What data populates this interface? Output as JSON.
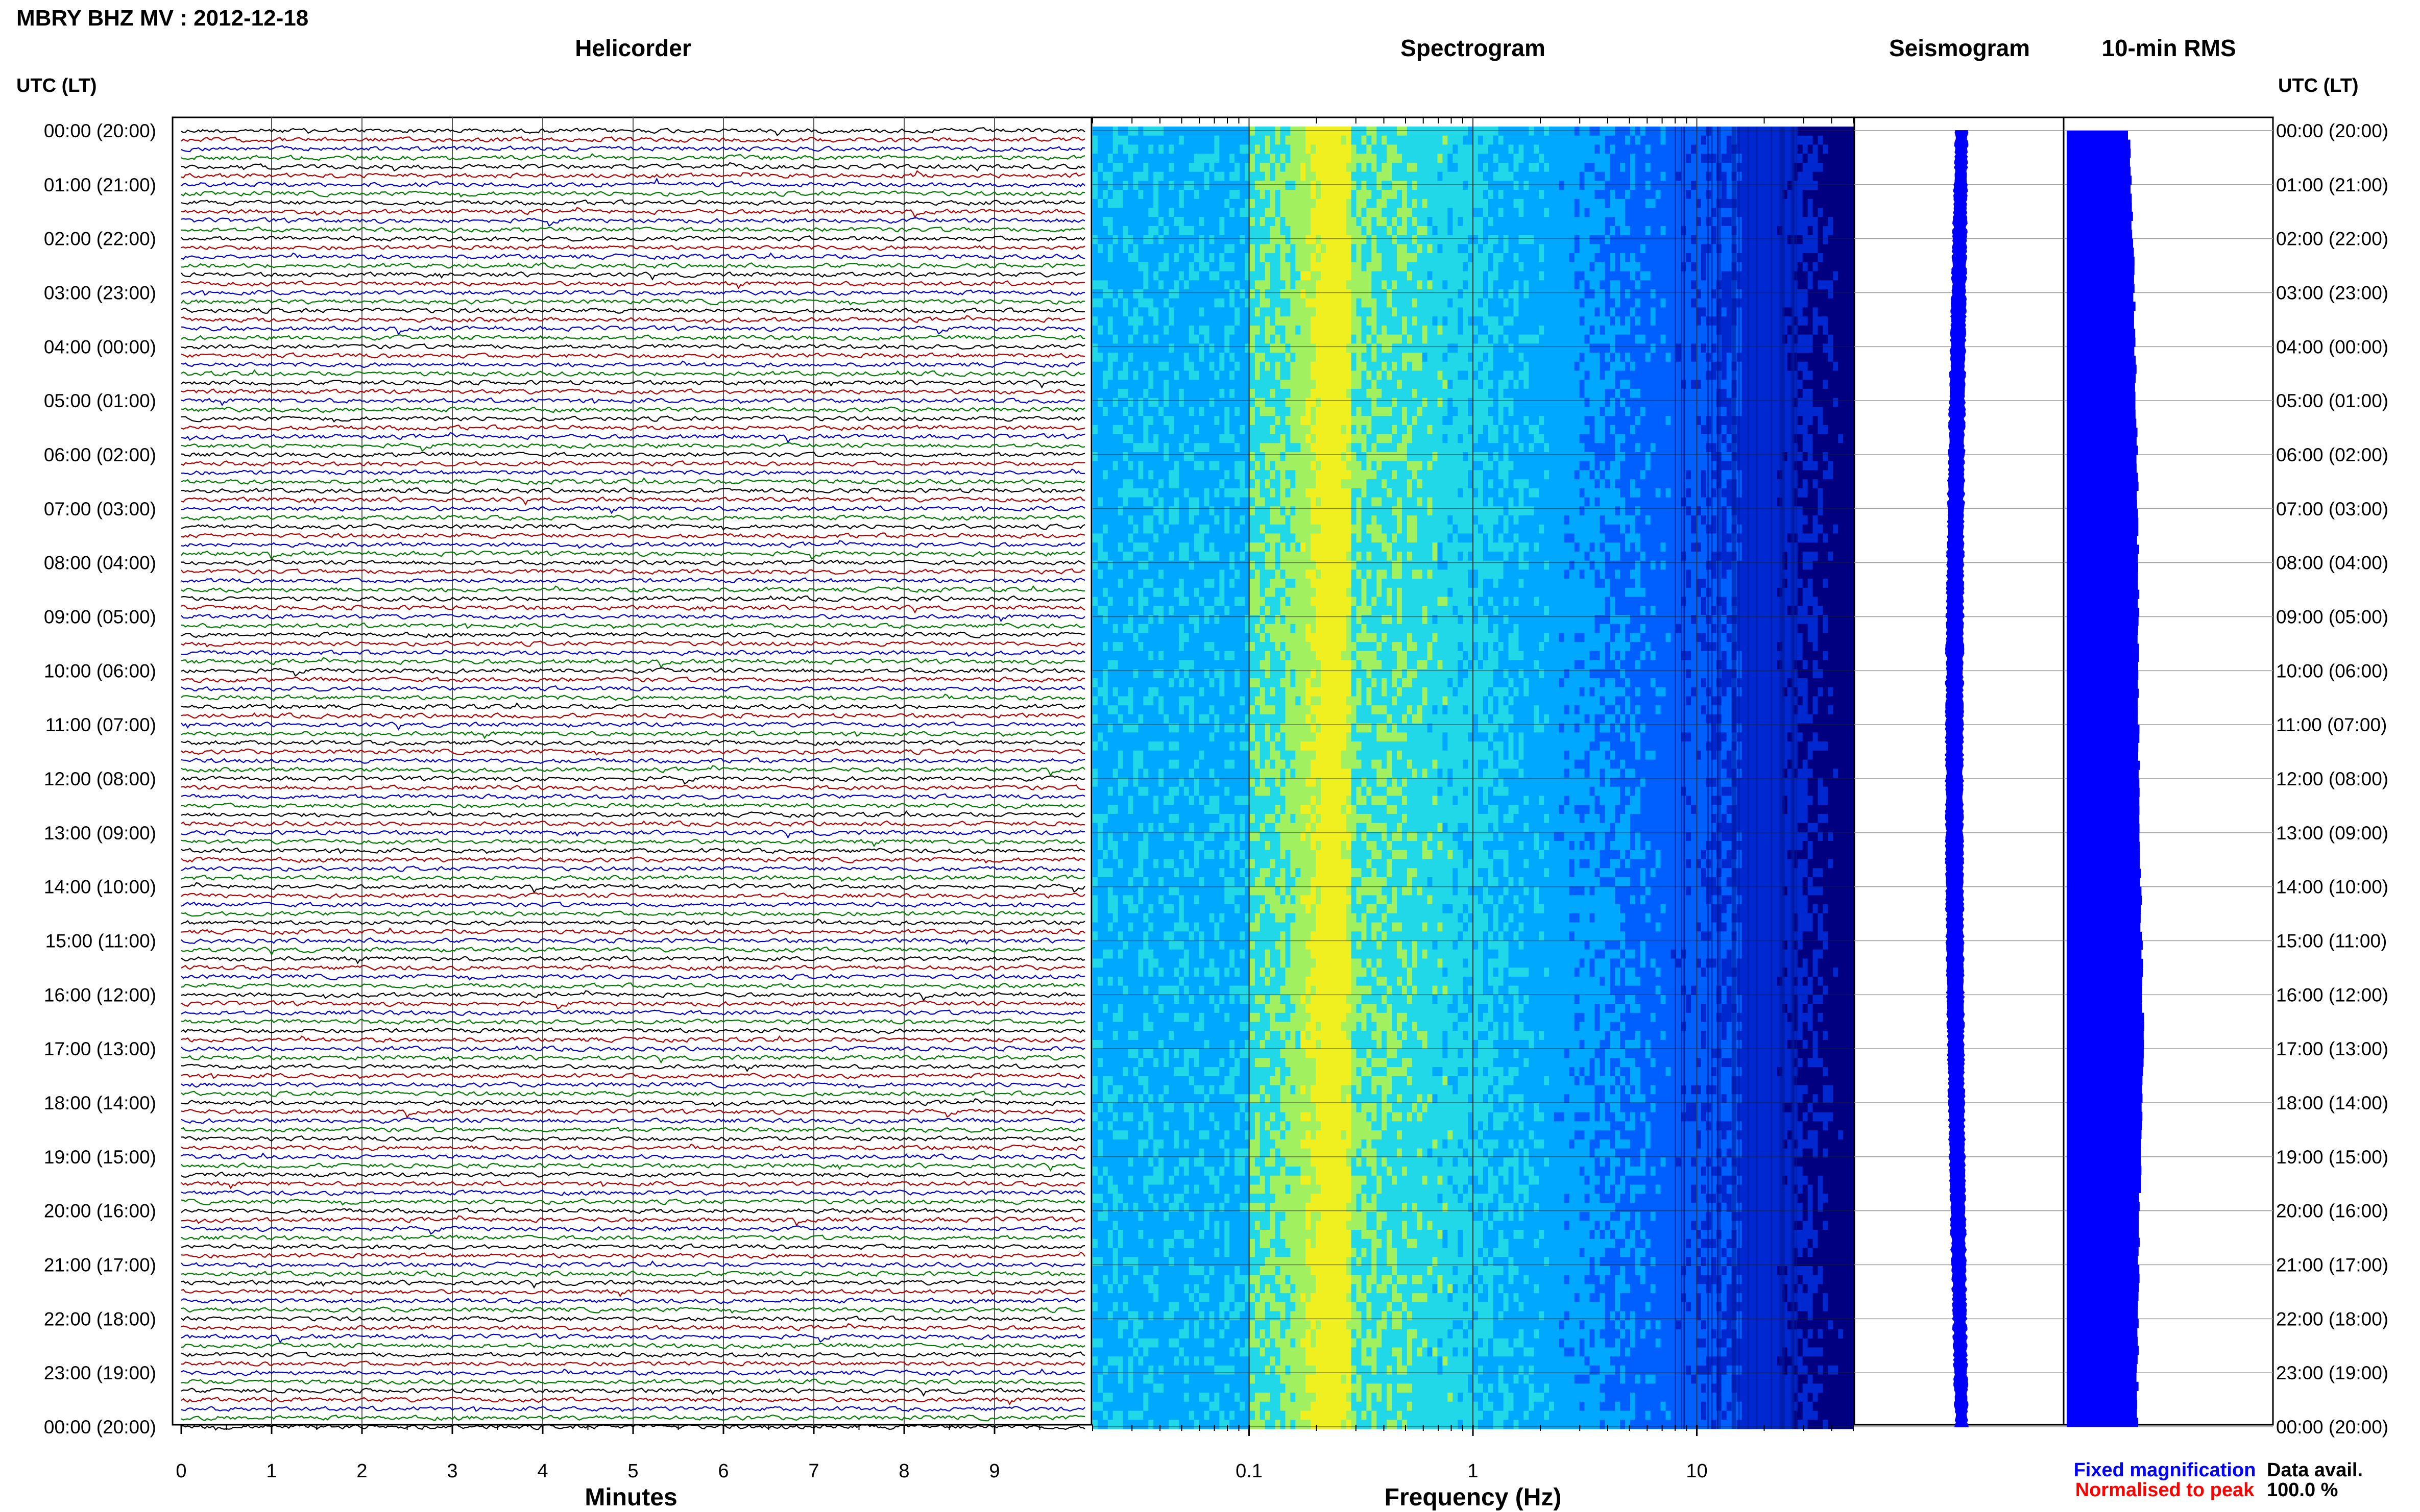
{
  "header": {
    "station_title": "MBRY BHZ MV : 2012-12-18"
  },
  "panels": {
    "helicorder": "Helicorder",
    "spectrogram": "Spectrogram",
    "seismogram": "Seismogram",
    "rms": "10-min RMS"
  },
  "time_axis": {
    "title_left": "UTC (LT)",
    "title_right": "UTC (LT)",
    "labels": [
      "00:00 (20:00)",
      "01:00 (21:00)",
      "02:00 (22:00)",
      "03:00 (23:00)",
      "04:00 (00:00)",
      "05:00 (01:00)",
      "06:00 (02:00)",
      "07:00 (03:00)",
      "08:00 (04:00)",
      "09:00 (05:00)",
      "10:00 (06:00)",
      "11:00 (07:00)",
      "12:00 (08:00)",
      "13:00 (09:00)",
      "14:00 (10:00)",
      "15:00 (11:00)",
      "16:00 (12:00)",
      "17:00 (13:00)",
      "18:00 (14:00)",
      "19:00 (15:00)",
      "20:00 (16:00)",
      "21:00 (17:00)",
      "22:00 (18:00)",
      "23:00 (19:00)",
      "00:00 (20:00)"
    ]
  },
  "chart_data": [
    {
      "type": "line",
      "panel": "Helicorder",
      "xlabel": "Minutes",
      "x_ticks": [
        "0",
        "1",
        "2",
        "3",
        "4",
        "5",
        "6",
        "7",
        "8",
        "9"
      ],
      "xlim": [
        0,
        10
      ],
      "trace_colors": [
        "#000000",
        "#b00000",
        "#0000cc",
        "#007a00"
      ],
      "traces_per_hour": 6,
      "hours": 24
    },
    {
      "type": "heatmap",
      "panel": "Spectrogram",
      "xlabel": "Frequency (Hz)",
      "x_ticks": [
        "0.1",
        "1",
        "10"
      ],
      "x_tick_values": [
        0.1,
        1,
        10
      ],
      "xscale": "log",
      "xlim": [
        0.02,
        50
      ],
      "colormap": [
        "#000080",
        "#0028d0",
        "#0060ff",
        "#00a8ff",
        "#20d8e8",
        "#a0f060",
        "#f0f020"
      ]
    },
    {
      "type": "line",
      "panel": "Seismogram",
      "color": "#0000ff"
    },
    {
      "type": "bar",
      "panel": "10-min RMS",
      "orientation": "horizontal",
      "color": "#0000ff",
      "values_by_hour": [
        0.58,
        0.6,
        0.62,
        0.63,
        0.64,
        0.65,
        0.66,
        0.66,
        0.67,
        0.67,
        0.67,
        0.67,
        0.68,
        0.68,
        0.69,
        0.7,
        0.71,
        0.72,
        0.7,
        0.69,
        0.68,
        0.67,
        0.67,
        0.66,
        0.66
      ]
    }
  ],
  "legend": {
    "fixed": "Fixed magnification",
    "fixed_color": "#0000ff",
    "normalised": "Normalised to peak",
    "normalised_color": "#ff0000"
  },
  "availability": {
    "label": "Data avail.",
    "value": "100.0 %"
  }
}
